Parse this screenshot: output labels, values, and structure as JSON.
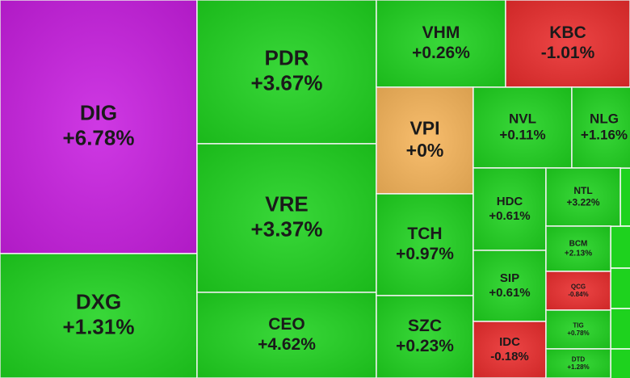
{
  "chart_data": {
    "type": "treemap",
    "categories": [
      "DIG",
      "DXG",
      "PDR",
      "VRE",
      "CEO",
      "VHM",
      "KBC",
      "VPI",
      "NVL",
      "NLG",
      "TCH",
      "SZC",
      "HDC",
      "SIP",
      "IDC",
      "NTL",
      "BCM",
      "QCG",
      "TIG",
      "DTD"
    ],
    "values": [
      6.78,
      1.31,
      3.67,
      3.37,
      4.62,
      0.26,
      -1.01,
      0,
      0.11,
      1.16,
      0.97,
      0.23,
      0.61,
      0.61,
      -0.18,
      3.22,
      2.13,
      -0.84,
      0.78,
      1.28
    ],
    "value_labels": [
      "+6.78%",
      "+1.31%",
      "+3.67%",
      "+3.37%",
      "+4.62%",
      "+0.26%",
      "-1.01%",
      "+0%",
      "+0.11%",
      "+1.16%",
      "+0.97%",
      "+0.23%",
      "+0.61%",
      "+0.61%",
      "-0.18%",
      "+3.22%",
      "+2.13%",
      "-0.84%",
      "+0.78%",
      "+1.28%"
    ],
    "colors": [
      "#c81ee0",
      "#1ed21e",
      "#1ed21e",
      "#1ed21e",
      "#1ed21e",
      "#1ed21e",
      "#ea2c2c",
      "#f7b55a",
      "#1ed21e",
      "#1ed21e",
      "#1ed21e",
      "#1ed21e",
      "#1ed21e",
      "#1ed21e",
      "#ea2c2c",
      "#1ed21e",
      "#1ed21e",
      "#ea2c2c",
      "#1ed21e",
      "#1ed21e"
    ]
  }
}
